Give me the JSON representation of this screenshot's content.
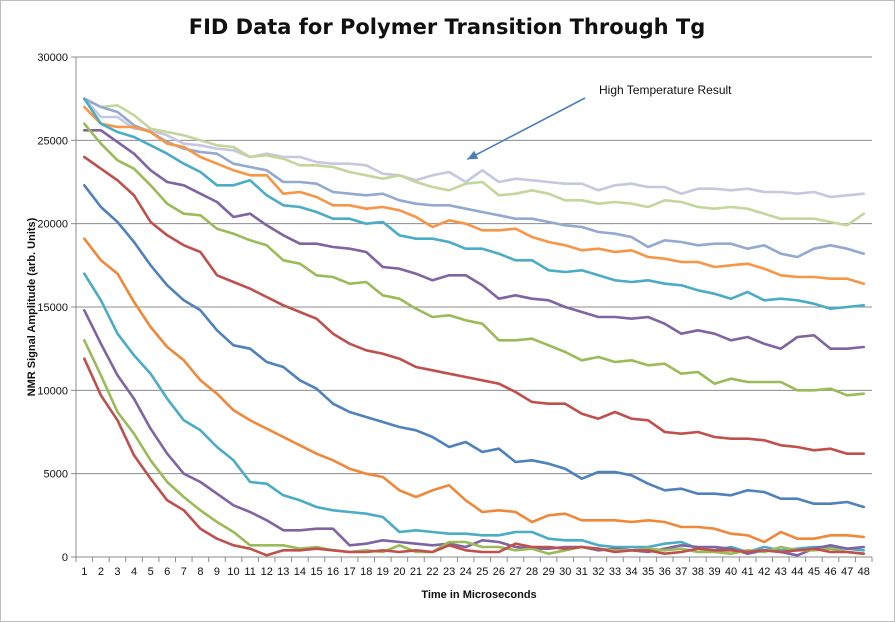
{
  "chart_data": {
    "type": "line",
    "title": "FID Data for Polymer Transition Through Tg",
    "xlabel": "Time in Microseconds",
    "ylabel": "NMR Signal Amplitude (arb. Units)",
    "ylim": [
      0,
      30000
    ],
    "ytick_step": 5000,
    "yticks": [
      "0",
      "5000",
      "10000",
      "15000",
      "20000",
      "25000",
      "30000"
    ],
    "x": [
      1,
      2,
      3,
      4,
      5,
      6,
      7,
      8,
      9,
      10,
      11,
      12,
      13,
      14,
      15,
      16,
      17,
      18,
      19,
      20,
      21,
      22,
      23,
      24,
      25,
      26,
      27,
      28,
      29,
      30,
      31,
      32,
      33,
      34,
      35,
      36,
      37,
      38,
      39,
      40,
      41,
      42,
      43,
      44,
      45,
      46,
      47,
      48
    ],
    "grid": "horizontal",
    "legend": "none",
    "annotation": {
      "text": "High Temperature Result",
      "arrow_target": [
        25,
        24400
      ]
    },
    "series": [
      {
        "color": "#C5C8DE",
        "values": [
          27500,
          26400,
          26400,
          25700,
          25600,
          25300,
          24800,
          24700,
          24500,
          24400,
          24000,
          24200,
          24000,
          24000,
          23700,
          23600,
          23600,
          23500,
          23000,
          22900,
          22600,
          22900,
          23100,
          22500,
          23200,
          22500,
          22700,
          22600,
          22500,
          22400,
          22400,
          22000,
          22300,
          22400,
          22200,
          22200,
          21800,
          22100,
          22100,
          22000,
          22100,
          21900,
          21900,
          21800,
          21900,
          21600,
          21700,
          21800
        ]
      },
      {
        "color": "#C3D69B",
        "values": [
          27500,
          27000,
          27100,
          26500,
          25700,
          25500,
          25300,
          25000,
          24700,
          24600,
          24000,
          24100,
          23900,
          23500,
          23500,
          23400,
          23100,
          22900,
          22700,
          22900,
          22500,
          22200,
          22000,
          22400,
          22500,
          21700,
          21800,
          22000,
          21800,
          21400,
          21400,
          21200,
          21300,
          21200,
          21000,
          21400,
          21300,
          21000,
          20900,
          21000,
          20900,
          20600,
          20300,
          20300,
          20300,
          20100,
          19900,
          20600
        ]
      },
      {
        "color": "#93A9CF",
        "values": [
          27500,
          27000,
          26700,
          25900,
          25500,
          24900,
          24500,
          24300,
          24200,
          23600,
          23400,
          23200,
          22500,
          22500,
          22400,
          21900,
          21800,
          21700,
          21800,
          21400,
          21200,
          21100,
          21100,
          20900,
          20700,
          20500,
          20300,
          20300,
          20100,
          19900,
          19800,
          19500,
          19400,
          19200,
          18600,
          19000,
          18900,
          18700,
          18800,
          18800,
          18500,
          18700,
          18200,
          18000,
          18500,
          18700,
          18500,
          18200
        ]
      },
      {
        "color": "#F79646",
        "values": [
          27000,
          26000,
          25800,
          25800,
          25500,
          24800,
          24600,
          24000,
          23600,
          23200,
          22900,
          22900,
          21800,
          21900,
          21600,
          21100,
          21100,
          20900,
          21000,
          20800,
          20400,
          19800,
          20200,
          20000,
          19600,
          19600,
          19700,
          19200,
          18900,
          18700,
          18400,
          18500,
          18300,
          18400,
          18000,
          17900,
          17700,
          17700,
          17400,
          17500,
          17600,
          17300,
          16900,
          16800,
          16800,
          16700,
          16700,
          16400
        ]
      },
      {
        "color": "#4BACC6",
        "values": [
          27500,
          26000,
          25500,
          25200,
          24700,
          24200,
          23600,
          23100,
          22300,
          22300,
          22600,
          21700,
          21100,
          21000,
          20700,
          20300,
          20300,
          20000,
          20100,
          19300,
          19100,
          19100,
          18900,
          18500,
          18500,
          18200,
          17800,
          17800,
          17200,
          17100,
          17200,
          16900,
          16600,
          16500,
          16600,
          16400,
          16300,
          16000,
          15800,
          15500,
          15900,
          15400,
          15500,
          15400,
          15200,
          14900,
          15000,
          15100
        ]
      },
      {
        "color": "#8064A2",
        "values": [
          25600,
          25600,
          24900,
          24200,
          23200,
          22500,
          22300,
          21800,
          21300,
          20400,
          20600,
          19900,
          19300,
          18800,
          18800,
          18600,
          18500,
          18300,
          17400,
          17300,
          17000,
          16600,
          16900,
          16900,
          16300,
          15500,
          15700,
          15500,
          15400,
          15000,
          14700,
          14400,
          14400,
          14300,
          14400,
          14000,
          13400,
          13600,
          13400,
          13000,
          13200,
          12800,
          12500,
          13200,
          13300,
          12500,
          12500,
          12600
        ]
      },
      {
        "color": "#9BBB59",
        "values": [
          26000,
          24800,
          23800,
          23300,
          22300,
          21200,
          20600,
          20500,
          19700,
          19400,
          19000,
          18700,
          17800,
          17600,
          16900,
          16800,
          16400,
          16500,
          15700,
          15500,
          14900,
          14400,
          14500,
          14200,
          14000,
          13000,
          13000,
          13100,
          12700,
          12300,
          11800,
          12000,
          11700,
          11800,
          11500,
          11600,
          11000,
          11100,
          10400,
          10700,
          10500,
          10500,
          10500,
          10000,
          10000,
          10100,
          9700,
          9800
        ]
      },
      {
        "color": "#C0504D",
        "values": [
          24000,
          23300,
          22600,
          21700,
          20100,
          19300,
          18700,
          18300,
          16900,
          16500,
          16100,
          15600,
          15100,
          14700,
          14300,
          13400,
          12800,
          12400,
          12200,
          11900,
          11400,
          11200,
          11000,
          10800,
          10600,
          10400,
          9900,
          9300,
          9200,
          9200,
          8600,
          8300,
          8700,
          8300,
          8200,
          7500,
          7400,
          7500,
          7200,
          7100,
          7100,
          7000,
          6700,
          6600,
          6400,
          6500,
          6200,
          6200
        ]
      },
      {
        "color": "#4F81BD",
        "values": [
          22300,
          21000,
          20100,
          18900,
          17500,
          16300,
          15400,
          14800,
          13600,
          12700,
          12500,
          11700,
          11400,
          10600,
          10100,
          9200,
          8700,
          8400,
          8100,
          7800,
          7600,
          7200,
          6600,
          6900,
          6300,
          6500,
          5700,
          5800,
          5600,
          5300,
          4700,
          5100,
          5100,
          4900,
          4400,
          4000,
          4100,
          3800,
          3800,
          3700,
          4000,
          3900,
          3500,
          3500,
          3200,
          3200,
          3300,
          3000
        ]
      },
      {
        "color": "#F0883A",
        "values": [
          19100,
          17800,
          17000,
          15300,
          13800,
          12600,
          11800,
          10600,
          9800,
          8800,
          8200,
          7700,
          7200,
          6700,
          6200,
          5800,
          5300,
          5000,
          4800,
          4000,
          3600,
          4000,
          4300,
          3400,
          2700,
          2800,
          2700,
          2100,
          2500,
          2600,
          2200,
          2200,
          2200,
          2100,
          2200,
          2100,
          1800,
          1800,
          1700,
          1400,
          1300,
          900,
          1500,
          1100,
          1100,
          1300,
          1300,
          1200
        ]
      },
      {
        "color": "#4BACC6",
        "values": [
          17000,
          15400,
          13400,
          12100,
          11000,
          9500,
          8200,
          7600,
          6600,
          5800,
          4500,
          4400,
          3700,
          3400,
          3000,
          2800,
          2700,
          2600,
          2400,
          1500,
          1600,
          1500,
          1400,
          1400,
          1300,
          1300,
          1500,
          1500,
          1100,
          1000,
          1000,
          700,
          600,
          600,
          600,
          800,
          900,
          500,
          400,
          600,
          300,
          600,
          400,
          500,
          600,
          600,
          500,
          400
        ]
      },
      {
        "color": "#8064A2",
        "values": [
          14800,
          12800,
          10900,
          9500,
          7700,
          6200,
          5000,
          4500,
          3800,
          3100,
          2700,
          2200,
          1600,
          1600,
          1700,
          1700,
          700,
          800,
          1000,
          900,
          800,
          700,
          800,
          600,
          1000,
          900,
          600,
          500,
          500,
          600,
          600,
          400,
          500,
          400,
          300,
          500,
          700,
          600,
          600,
          500,
          200,
          400,
          300,
          100,
          500,
          700,
          500,
          600
        ]
      },
      {
        "color": "#9BBB59",
        "values": [
          13000,
          10900,
          8700,
          7400,
          5800,
          4500,
          3600,
          2800,
          2100,
          1500,
          700,
          700,
          700,
          500,
          600,
          400,
          300,
          400,
          300,
          700,
          300,
          300,
          900,
          900,
          600,
          600,
          400,
          500,
          200,
          400,
          600,
          500,
          400,
          400,
          500,
          400,
          500,
          300,
          300,
          200,
          400,
          300,
          600,
          400,
          400,
          500,
          300,
          200
        ]
      },
      {
        "color": "#C0504D",
        "values": [
          11900,
          9700,
          8200,
          6100,
          4700,
          3400,
          2800,
          1700,
          1100,
          700,
          500,
          100,
          400,
          400,
          500,
          400,
          300,
          300,
          400,
          300,
          400,
          300,
          700,
          400,
          300,
          300,
          800,
          600,
          600,
          500,
          600,
          500,
          300,
          400,
          400,
          200,
          300,
          500,
          400,
          400,
          300,
          400,
          300,
          400,
          500,
          300,
          300,
          200
        ]
      }
    ]
  }
}
